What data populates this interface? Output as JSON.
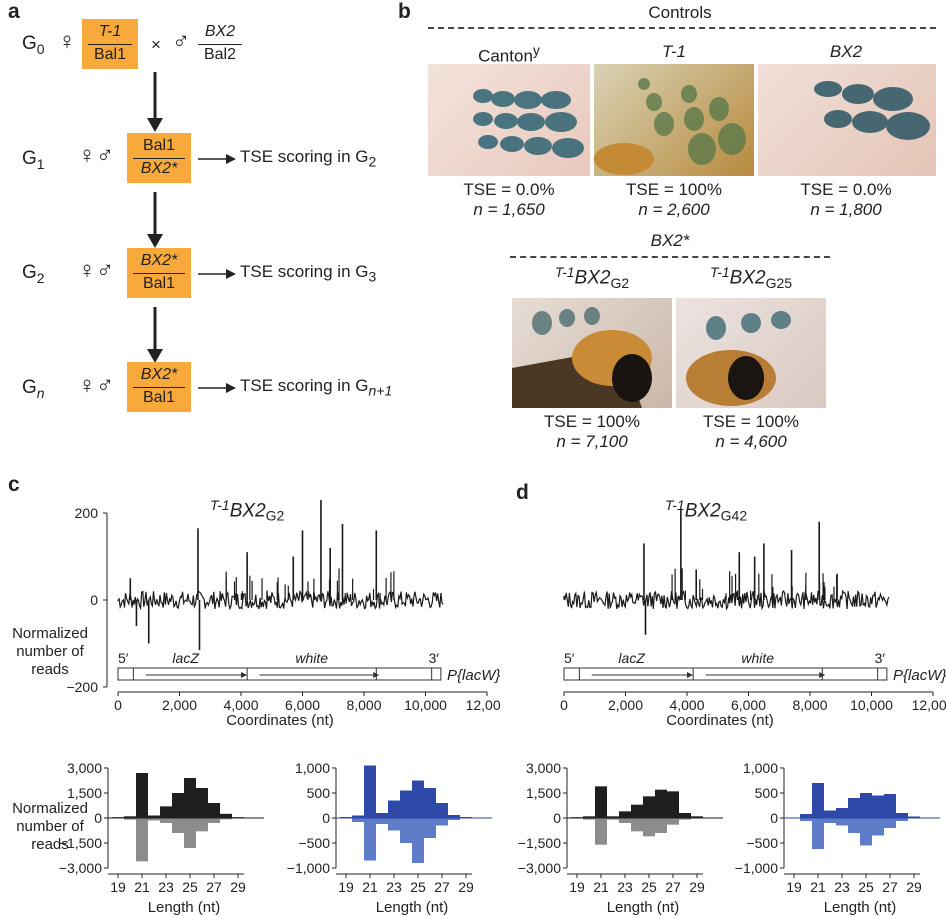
{
  "panel_a": {
    "letter": "a",
    "g0": {
      "gen": "G",
      "sub": "0",
      "female_top": "T-1",
      "female_bot": "Bal1",
      "cross": "×",
      "male_top": "BX2",
      "male_bot": "Bal2"
    },
    "g1": {
      "gen": "G",
      "sub": "1",
      "top": "Bal1",
      "bot": "BX2*",
      "score": "TSE scoring in G",
      "score_sub": "2"
    },
    "g2": {
      "gen": "G",
      "sub": "2",
      "top": "BX2*",
      "bot": "Bal1",
      "score": "TSE scoring in G",
      "score_sub": "3"
    },
    "gn": {
      "gen": "G",
      "sub": "n",
      "top": "BX2*",
      "bot": "Bal1",
      "score": "TSE scoring in G",
      "score_sub": "n+1"
    },
    "female_symbol": "♀",
    "male_symbol": "♂",
    "both_symbol": "♀♂"
  },
  "panel_b": {
    "letter": "b",
    "controls_label": "Controls",
    "photos": [
      {
        "label": "Canton",
        "label_sup": "y",
        "tse": "TSE = 0.0%",
        "n": "n = 1,650"
      },
      {
        "label": "T-1",
        "tse": "TSE = 100%",
        "n": "n = 2,600"
      },
      {
        "label": "BX2",
        "tse": "TSE = 0.0%",
        "n": "n = 1,800"
      }
    ],
    "bx2_label": "BX2*",
    "bx2_photos": [
      {
        "sup": "T-1",
        "name": "BX2",
        "sub": "G2",
        "tse": "TSE = 100%",
        "n": "n = 7,100"
      },
      {
        "sup": "T-1",
        "name": "BX2",
        "sub": "G25",
        "tse": "TSE = 100%",
        "n": "n = 4,600"
      }
    ]
  },
  "panel_c": {
    "letter": "c",
    "title_sup": "T-1",
    "title_name": "BX2",
    "title_sub": "G2",
    "ylabel_line1": "Normalized",
    "ylabel_line2": "number of reads",
    "xlabel": "Coordinates (nt)",
    "yticks": [
      "200",
      "0",
      "−200"
    ],
    "xticks": [
      "0",
      "2,000",
      "4,000",
      "6,000",
      "8,000",
      "10,000",
      "12,000"
    ],
    "map": {
      "five": "5′",
      "lacz": "lacZ",
      "white": "white",
      "three": "3′",
      "plac": "P{lacW}"
    }
  },
  "panel_d": {
    "letter": "d",
    "title_sup": "T-1",
    "title_name": "BX2",
    "title_sub": "G42",
    "xlabel": "Coordinates (nt)",
    "xticks": [
      "0",
      "2,000",
      "4,000",
      "6,000",
      "8,000",
      "10,000",
      "12,000"
    ],
    "map": {
      "five": "5′",
      "lacz": "lacZ",
      "white": "white",
      "three": "3′",
      "plac": "P{lacW}"
    }
  },
  "histograms": {
    "ylabel_line1": "Normalized",
    "ylabel_line2": "number of reads",
    "xlabel": "Length (nt)",
    "xticks": [
      "19",
      "21",
      "23",
      "25",
      "27",
      "29"
    ],
    "c_black_yticks": [
      "3,000",
      "1,500",
      "0",
      "−1,500",
      "−3,000"
    ],
    "c_blue_yticks": [
      "1,000",
      "500",
      "0",
      "−500",
      "−1,000"
    ],
    "d_black_yticks": [
      "3,000",
      "1,500",
      "0",
      "−1,500",
      "−3,000"
    ],
    "d_blue_yticks": [
      "1,000",
      "500",
      "0",
      "−500",
      "−1,000"
    ]
  },
  "chart_data": [
    {
      "type": "bar",
      "panel": "c-left",
      "xlabel": "Length (nt)",
      "ylabel": "Normalized number of reads",
      "ylim": [
        -3000,
        3000
      ],
      "x": [
        19,
        20,
        21,
        22,
        23,
        24,
        25,
        26,
        27,
        28,
        29,
        30
      ],
      "series": [
        {
          "values": [
            50,
            100,
            2700,
            150,
            700,
            1500,
            2400,
            1800,
            900,
            250,
            50,
            0
          ]
        },
        {
          "values": [
            -20,
            -100,
            -2600,
            -150,
            -300,
            -900,
            -1800,
            -800,
            -300,
            -80,
            -20,
            0
          ]
        }
      ],
      "colors": [
        "#1f1f1f",
        "#8c8c8c"
      ]
    },
    {
      "type": "bar",
      "panel": "c-right",
      "xlabel": "Length (nt)",
      "ylim": [
        -1000,
        1000
      ],
      "x": [
        19,
        20,
        21,
        22,
        23,
        24,
        25,
        26,
        27,
        28,
        29,
        30
      ],
      "series": [
        {
          "values": [
            20,
            50,
            1050,
            100,
            350,
            550,
            750,
            600,
            300,
            60,
            20,
            0
          ]
        },
        {
          "values": [
            -10,
            -80,
            -850,
            -120,
            -250,
            -500,
            -900,
            -400,
            -150,
            -40,
            -10,
            0
          ]
        }
      ],
      "colors": [
        "#2e49a8",
        "#5f7cc8"
      ]
    },
    {
      "type": "bar",
      "panel": "d-left",
      "xlabel": "Length (nt)",
      "ylim": [
        -3000,
        3000
      ],
      "x": [
        19,
        20,
        21,
        22,
        23,
        24,
        25,
        26,
        27,
        28,
        29,
        30
      ],
      "series": [
        {
          "values": [
            50,
            100,
            1900,
            100,
            400,
            800,
            1300,
            1700,
            1600,
            300,
            100,
            0
          ]
        },
        {
          "values": [
            -20,
            -100,
            -1600,
            -100,
            -300,
            -800,
            -1100,
            -900,
            -400,
            -100,
            -20,
            0
          ]
        }
      ],
      "colors": [
        "#1f1f1f",
        "#8c8c8c"
      ]
    },
    {
      "type": "bar",
      "panel": "d-right",
      "xlabel": "Length (nt)",
      "ylim": [
        -1000,
        1000
      ],
      "x": [
        19,
        20,
        21,
        22,
        23,
        24,
        25,
        26,
        27,
        28,
        29,
        30
      ],
      "series": [
        {
          "values": [
            10,
            80,
            700,
            150,
            200,
            400,
            500,
            450,
            480,
            100,
            30,
            0
          ]
        },
        {
          "values": [
            -10,
            -60,
            -620,
            -100,
            -150,
            -300,
            -550,
            -350,
            -200,
            -60,
            -10,
            0
          ]
        }
      ],
      "colors": [
        "#2e49a8",
        "#5f7cc8"
      ]
    },
    {
      "type": "line",
      "panel": "c-top",
      "xlabel": "Coordinates (nt)",
      "ylabel": "Normalized number of reads",
      "xlim": [
        0,
        12000
      ],
      "ylim": [
        -200,
        250
      ],
      "peaks": [
        {
          "x": 2600,
          "y": 165
        },
        {
          "x": 2650,
          "y": -115
        },
        {
          "x": 6600,
          "y": 245
        },
        {
          "x": 6000,
          "y": 160
        },
        {
          "x": 7300,
          "y": 175
        },
        {
          "x": 8400,
          "y": 160
        },
        {
          "x": 4200,
          "y": 110
        },
        {
          "x": 5700,
          "y": 100
        },
        {
          "x": 6900,
          "y": 120
        },
        {
          "x": 1000,
          "y": -100
        },
        {
          "x": 400,
          "y": 50
        },
        {
          "x": 600,
          "y": -60
        }
      ]
    },
    {
      "type": "line",
      "panel": "d-top",
      "xlabel": "Coordinates (nt)",
      "xlim": [
        0,
        12000
      ],
      "ylim": [
        -200,
        250
      ],
      "peaks": [
        {
          "x": 3800,
          "y": 210
        },
        {
          "x": 2600,
          "y": 130
        },
        {
          "x": 2650,
          "y": -80
        },
        {
          "x": 8300,
          "y": 180
        },
        {
          "x": 5700,
          "y": 110
        },
        {
          "x": 6500,
          "y": 130
        },
        {
          "x": 7400,
          "y": 115
        },
        {
          "x": 6200,
          "y": 100
        },
        {
          "x": 4300,
          "y": 70
        }
      ]
    }
  ]
}
